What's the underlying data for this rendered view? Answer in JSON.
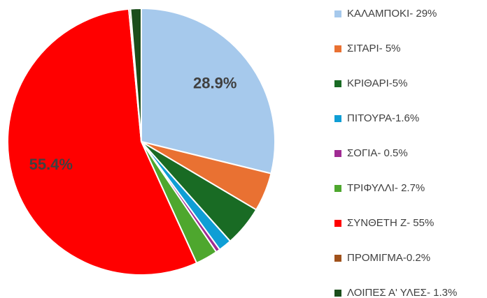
{
  "chart_data": {
    "type": "pie",
    "categories": [
      "ΚΑΛΑΜΠΟΚΙ- 29%",
      "ΣΙΤΑΡΙ- 5%",
      "ΚΡΙΘΑΡΙ-5%",
      "ΠΙΤΟΥΡΑ-1.6%",
      "ΣΟΓΙΑ- 0.5%",
      "ΤΡΙΦΥΛΛΙ- 2.7%",
      "ΣΥΝΘΕΤΗ Ζ- 55%",
      "ΠΡΟΜΙΓΜΑ-0.2%",
      "ΛΟΙΠΕΣ Α' ΥΛΕΣ- 1.3%"
    ],
    "values": [
      28.9,
      4.7,
      4.9,
      1.6,
      0.5,
      2.7,
      55.4,
      0.2,
      1.3
    ],
    "value_labels": [
      "28.9%",
      null,
      null,
      null,
      null,
      null,
      "55.4%",
      null,
      null
    ],
    "colors": [
      "#a6c9ec",
      "#e97132",
      "#196b24",
      "#0f9ed5",
      "#a02b93",
      "#4ea72e",
      "#ff0000",
      "#a0511b",
      "#1b4d1b"
    ],
    "legend": "right"
  }
}
